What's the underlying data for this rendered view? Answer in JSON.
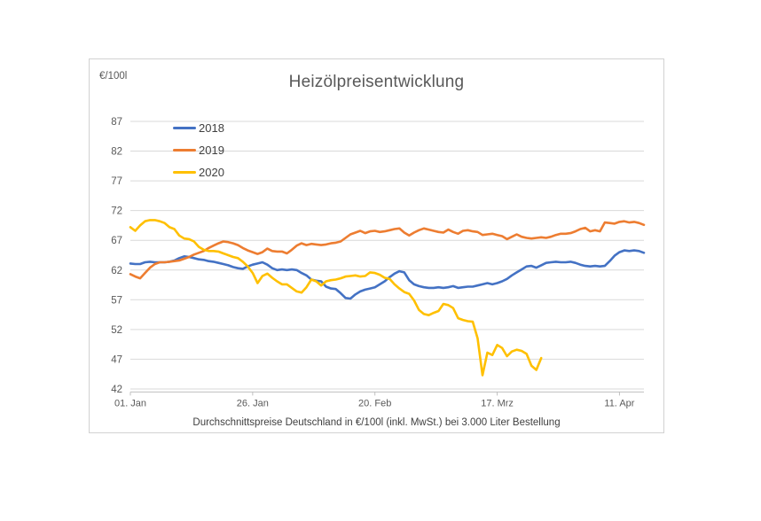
{
  "title": "Heizölpreisentwicklung",
  "y_unit_label": "€/100l",
  "caption": "Durchschnittspreise Deutschland in €/100l (inkl. MwSt.) bei 3.000 Liter Bestellung",
  "chart_data": {
    "type": "line",
    "title": "Heizölpreisentwicklung",
    "ylabel": "€/100l",
    "ylim": [
      42,
      87
    ],
    "y_ticks": [
      87,
      82,
      77,
      72,
      67,
      62,
      57,
      52,
      47,
      42
    ],
    "grid": "horizontal gridlines on",
    "legend_position": "top-left inside plot area",
    "x_description": "daily values, day 0 = 01. Jan",
    "x_tick_days": [
      0,
      25,
      50,
      75,
      100
    ],
    "x_tick_labels": [
      "01. Jan",
      "26. Jan",
      "20. Feb",
      "17. Mrz",
      "11. Apr"
    ],
    "x_total_days": 105,
    "series": [
      {
        "name": "2018",
        "color": "#4472C4",
        "start_day": 0,
        "values": [
          63.1,
          63.0,
          63.0,
          63.3,
          63.4,
          63.3,
          63.3,
          63.3,
          63.4,
          63.6,
          64.0,
          64.3,
          64.2,
          64.0,
          63.8,
          63.7,
          63.5,
          63.4,
          63.2,
          63.0,
          62.8,
          62.5,
          62.3,
          62.2,
          62.6,
          62.9,
          63.1,
          63.3,
          62.9,
          62.3,
          62.0,
          62.1,
          62.0,
          62.1,
          62.0,
          61.5,
          61.1,
          60.4,
          60.2,
          60.1,
          59.2,
          58.9,
          58.8,
          58.1,
          57.3,
          57.2,
          57.9,
          58.4,
          58.7,
          58.9,
          59.1,
          59.6,
          60.1,
          60.8,
          61.4,
          61.8,
          61.6,
          60.3,
          59.6,
          59.3,
          59.1,
          59.0,
          59.0,
          59.1,
          59.0,
          59.1,
          59.3,
          59.0,
          59.1,
          59.2,
          59.2,
          59.4,
          59.6,
          59.8,
          59.6,
          59.8,
          60.1,
          60.5,
          61.1,
          61.6,
          62.1,
          62.6,
          62.7,
          62.4,
          62.8,
          63.2,
          63.3,
          63.4,
          63.3,
          63.3,
          63.4,
          63.2,
          62.9,
          62.7,
          62.6,
          62.7,
          62.6,
          62.7,
          63.5,
          64.4,
          65.0,
          65.3,
          65.2,
          65.3,
          65.2,
          64.9
        ]
      },
      {
        "name": "2019",
        "color": "#ED7D31",
        "start_day": 0,
        "values": [
          61.3,
          60.9,
          60.6,
          61.5,
          62.4,
          63.0,
          63.3,
          63.3,
          63.4,
          63.5,
          63.6,
          63.9,
          64.2,
          64.6,
          64.9,
          65.2,
          65.7,
          66.1,
          66.5,
          66.8,
          66.7,
          66.5,
          66.2,
          65.7,
          65.3,
          65.0,
          64.7,
          65.0,
          65.6,
          65.2,
          65.1,
          65.1,
          64.8,
          65.4,
          66.1,
          66.5,
          66.2,
          66.4,
          66.3,
          66.2,
          66.3,
          66.5,
          66.6,
          66.8,
          67.4,
          68.0,
          68.3,
          68.6,
          68.2,
          68.5,
          68.6,
          68.4,
          68.5,
          68.7,
          68.9,
          69.0,
          68.3,
          67.8,
          68.3,
          68.7,
          69.0,
          68.8,
          68.6,
          68.4,
          68.3,
          68.8,
          68.4,
          68.1,
          68.6,
          68.7,
          68.5,
          68.4,
          67.9,
          68.0,
          68.1,
          67.9,
          67.7,
          67.2,
          67.6,
          68.0,
          67.6,
          67.4,
          67.3,
          67.4,
          67.5,
          67.4,
          67.6,
          67.9,
          68.1,
          68.1,
          68.2,
          68.5,
          68.9,
          69.1,
          68.5,
          68.7,
          68.5,
          70.0,
          69.9,
          69.8,
          70.1,
          70.2,
          70.0,
          70.1,
          69.9,
          69.6
        ]
      },
      {
        "name": "2020",
        "color": "#FFC000",
        "start_day": 0,
        "values": [
          69.2,
          68.6,
          69.5,
          70.2,
          70.4,
          70.4,
          70.2,
          69.9,
          69.2,
          68.9,
          67.8,
          67.3,
          67.2,
          66.8,
          65.9,
          65.4,
          65.2,
          65.2,
          65.1,
          64.8,
          64.5,
          64.2,
          64.0,
          63.4,
          62.6,
          61.5,
          59.8,
          61.0,
          61.4,
          60.7,
          60.1,
          59.6,
          59.6,
          59.0,
          58.4,
          58.2,
          59.1,
          60.4,
          60.1,
          59.4,
          60.1,
          60.3,
          60.4,
          60.6,
          60.9,
          61.0,
          61.1,
          60.9,
          61.0,
          61.6,
          61.5,
          61.2,
          60.7,
          60.5,
          59.6,
          58.9,
          58.3,
          58.0,
          56.9,
          55.3,
          54.6,
          54.4,
          54.8,
          55.1,
          56.3,
          56.1,
          55.6,
          53.9,
          53.6,
          53.4,
          53.3,
          50.5,
          44.3,
          48.1,
          47.7,
          49.4,
          48.9,
          47.5,
          48.3,
          48.6,
          48.4,
          47.9,
          45.9,
          45.2,
          47.2
        ]
      }
    ]
  }
}
